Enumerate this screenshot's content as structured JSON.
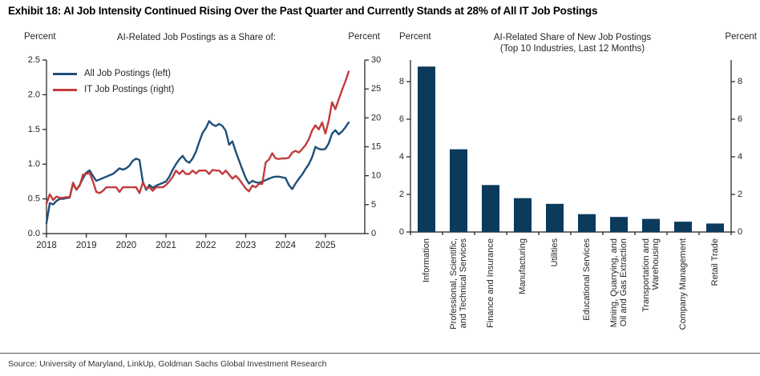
{
  "title": "Exhibit 18: AI Job Intensity Continued Rising Over the Past Quarter and Currently Stands at 28% of All IT Job Postings",
  "source": "Source: University of Maryland, LinkUp, Goldman Sachs Global Investment Research",
  "colors": {
    "bar_navy": "#0b3a5d",
    "line_blue": "#1f4e79",
    "line_red": "#c33b3c",
    "axis": "#1a1a1a",
    "tick_text": "#262626"
  },
  "chart_data": [
    {
      "type": "line",
      "title": "AI-Related Job Postings as a Share of:",
      "left_axis_unit": "Percent",
      "right_axis_unit": "Percent",
      "left_ylim": [
        0,
        2.5
      ],
      "left_yticks": [
        "0.0",
        "0.5",
        "1.0",
        "1.5",
        "2.0",
        "2.5"
      ],
      "right_ylim": [
        0,
        30
      ],
      "right_yticks": [
        "0",
        "5",
        "10",
        "15",
        "20",
        "25",
        "30"
      ],
      "xticks": [
        "2018",
        "2019",
        "2020",
        "2021",
        "2022",
        "2023",
        "2024",
        "2025"
      ],
      "x_start_year": 2018,
      "months_per_point": 1,
      "legend_position": "top-left-inside",
      "grid": false,
      "series": [
        {
          "name": "All Job Postings (left)",
          "axis": "left",
          "color": "#1f4e79",
          "values": [
            0.15,
            0.44,
            0.42,
            0.47,
            0.5,
            0.5,
            0.51,
            0.52,
            0.72,
            0.63,
            0.7,
            0.8,
            0.88,
            0.91,
            0.83,
            0.76,
            0.78,
            0.8,
            0.82,
            0.84,
            0.86,
            0.9,
            0.94,
            0.92,
            0.94,
            0.98,
            1.05,
            1.08,
            1.06,
            0.75,
            0.63,
            0.7,
            0.66,
            0.69,
            0.71,
            0.73,
            0.75,
            0.82,
            0.92,
            1.0,
            1.07,
            1.12,
            1.05,
            1.02,
            1.08,
            1.18,
            1.32,
            1.45,
            1.52,
            1.62,
            1.57,
            1.55,
            1.58,
            1.55,
            1.48,
            1.28,
            1.33,
            1.18,
            1.05,
            0.92,
            0.8,
            0.72,
            0.76,
            0.74,
            0.73,
            0.75,
            0.77,
            0.79,
            0.81,
            0.82,
            0.82,
            0.81,
            0.8,
            0.7,
            0.64,
            0.72,
            0.79,
            0.85,
            0.93,
            1.0,
            1.1,
            1.25,
            1.22,
            1.21,
            1.22,
            1.3,
            1.44,
            1.49,
            1.43,
            1.47,
            1.53,
            1.6
          ]
        },
        {
          "name": "IT Job Postings (right)",
          "axis": "right",
          "color": "#c33b3c",
          "values": [
            5.2,
            6.8,
            5.8,
            6.4,
            6.2,
            6.2,
            6.3,
            6.3,
            8.8,
            7.6,
            8.3,
            10.2,
            10.3,
            10.5,
            9.0,
            7.2,
            7.0,
            7.4,
            8.0,
            8.0,
            8.0,
            8.0,
            7.2,
            8.0,
            8.0,
            8.0,
            8.0,
            8.0,
            7.0,
            8.8,
            7.8,
            8.0,
            7.4,
            8.0,
            8.0,
            8.0,
            8.4,
            9.0,
            9.8,
            10.9,
            10.3,
            10.9,
            10.3,
            10.3,
            10.9,
            10.4,
            10.9,
            10.9,
            10.9,
            10.3,
            11.0,
            10.9,
            10.9,
            10.3,
            10.9,
            10.2,
            9.5,
            10.0,
            9.4,
            8.6,
            7.8,
            7.3,
            8.3,
            8.0,
            8.6,
            8.6,
            12.3,
            12.8,
            13.9,
            13.0,
            12.9,
            13.0,
            13.0,
            13.1,
            14.0,
            14.3,
            14.0,
            14.6,
            15.3,
            16.3,
            17.8,
            18.7,
            18.0,
            19.2,
            17.3,
            19.5,
            22.7,
            21.5,
            23.2,
            24.8,
            26.3,
            28.0
          ]
        }
      ]
    },
    {
      "type": "bar",
      "title_line1": "AI-Related Share of New Job Postings",
      "title_line2": "(Top 10 Industries, Last 12 Months)",
      "left_axis_unit": "Percent",
      "right_axis_unit": "Percent",
      "ylim": [
        0,
        8
      ],
      "yticks": [
        "0",
        "2",
        "4",
        "6",
        "8"
      ],
      "bar_color": "#0b3a5d",
      "grid": false,
      "categories": [
        [
          "Information"
        ],
        [
          "Professional, Scientific,",
          "and Technical Services"
        ],
        [
          "Finance and Insurance"
        ],
        [
          "Manufacturing"
        ],
        [
          "Utilities"
        ],
        [
          "Educational Services"
        ],
        [
          "Mining, Quarrying, and",
          "Oil and Gas Extraction"
        ],
        [
          "Transportation and",
          "Warehousing"
        ],
        [
          "Company Management"
        ],
        [
          "Retail Trade"
        ]
      ],
      "values": [
        8.8,
        4.4,
        2.5,
        1.8,
        1.5,
        0.95,
        0.8,
        0.7,
        0.55,
        0.45
      ]
    }
  ]
}
